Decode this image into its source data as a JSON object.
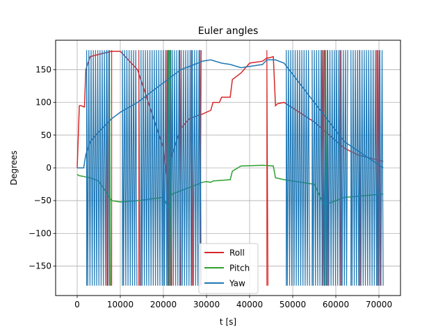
{
  "chart_data": {
    "type": "line",
    "title": "Euler angles",
    "xlabel": "t [s]",
    "ylabel": "Degrees",
    "xlim": [
      -5000,
      75000
    ],
    "ylim": [
      -195,
      195
    ],
    "xticks": [
      0,
      10000,
      20000,
      30000,
      40000,
      50000,
      60000,
      70000
    ],
    "yticks": [
      -150,
      -100,
      -50,
      0,
      50,
      100,
      150
    ],
    "grid": true,
    "legend_position": "lower center",
    "series": [
      {
        "name": "Roll",
        "color": "#d62728",
        "x": [
          0,
          500,
          1000,
          1600,
          1700,
          2000,
          3000,
          6000,
          8000,
          10000,
          14000,
          20000,
          21000,
          22000,
          24000,
          26000,
          28000,
          29000,
          31000,
          31500,
          33000,
          33500,
          35500,
          36000,
          38000,
          40000,
          43000,
          44000,
          44500,
          45500,
          46000,
          46500,
          48000,
          55000,
          62000,
          65000,
          71000
        ],
        "y": [
          0,
          95,
          95,
          93,
          93,
          150,
          170,
          175,
          178,
          178,
          150,
          30,
          -30,
          20,
          60,
          75,
          80,
          82,
          88,
          100,
          100,
          108,
          108,
          135,
          145,
          160,
          163,
          168,
          168,
          170,
          95,
          98,
          100,
          70,
          30,
          20,
          10
        ]
      },
      {
        "name": "Pitch",
        "color": "#2ca02c",
        "x": [
          0,
          500,
          1500,
          2000,
          3000,
          5000,
          7000,
          8000,
          10000,
          14000,
          20000,
          21000,
          22000,
          24000,
          26000,
          28000,
          29000,
          30000,
          31000,
          31500,
          35500,
          36000,
          38000,
          43000,
          45500,
          46000,
          48000,
          55000,
          57500,
          58000,
          62000,
          71000
        ],
        "y": [
          -10,
          -12,
          -13,
          -14,
          -15,
          -20,
          -40,
          -50,
          -52,
          -50,
          -45,
          -60,
          -40,
          -35,
          -30,
          -25,
          -22,
          -21,
          -22,
          -20,
          -18,
          -5,
          3,
          4,
          3,
          -15,
          -18,
          -25,
          -60,
          -55,
          -45,
          -40
        ]
      },
      {
        "name": "Yaw",
        "color": "#1f77b4",
        "x": [
          0,
          1500,
          2000,
          3000,
          5000,
          8000,
          10000,
          14000,
          20000,
          24000,
          28000,
          29000,
          31000,
          33500,
          35500,
          38000,
          40000,
          43000,
          44000,
          46000,
          48000,
          55000,
          62000,
          71000
        ],
        "y": [
          0,
          0,
          20,
          40,
          55,
          75,
          85,
          100,
          130,
          150,
          160,
          163,
          165,
          160,
          158,
          153,
          155,
          158,
          165,
          165,
          160,
          100,
          40,
          0
        ]
      }
    ],
    "oscillation_bands": [
      {
        "series": "Roll",
        "bands": [
          [
            6900,
            7700
          ],
          [
            8000,
            8200
          ],
          [
            14300,
            14700
          ],
          [
            20800,
            21500
          ],
          [
            21700,
            22200
          ],
          [
            23800,
            24200
          ],
          [
            26500,
            27000
          ],
          [
            28500,
            28900
          ],
          [
            44000,
            44400
          ],
          [
            56800,
            57500
          ],
          [
            58000,
            58500
          ],
          [
            61000,
            61500
          ],
          [
            65500,
            66000
          ],
          [
            69500,
            70500
          ]
        ]
      },
      {
        "series": "Pitch",
        "bands": [
          [
            7500,
            8000
          ],
          [
            21200,
            21800
          ],
          [
            57500,
            58200
          ]
        ]
      },
      {
        "series": "Yaw",
        "bands": [
          [
            2200,
            7500
          ],
          [
            10500,
            14000
          ],
          [
            14800,
            20000
          ],
          [
            20000,
            29000
          ],
          [
            48500,
            54000
          ],
          [
            54500,
            63000
          ],
          [
            63500,
            71000
          ]
        ]
      }
    ]
  }
}
